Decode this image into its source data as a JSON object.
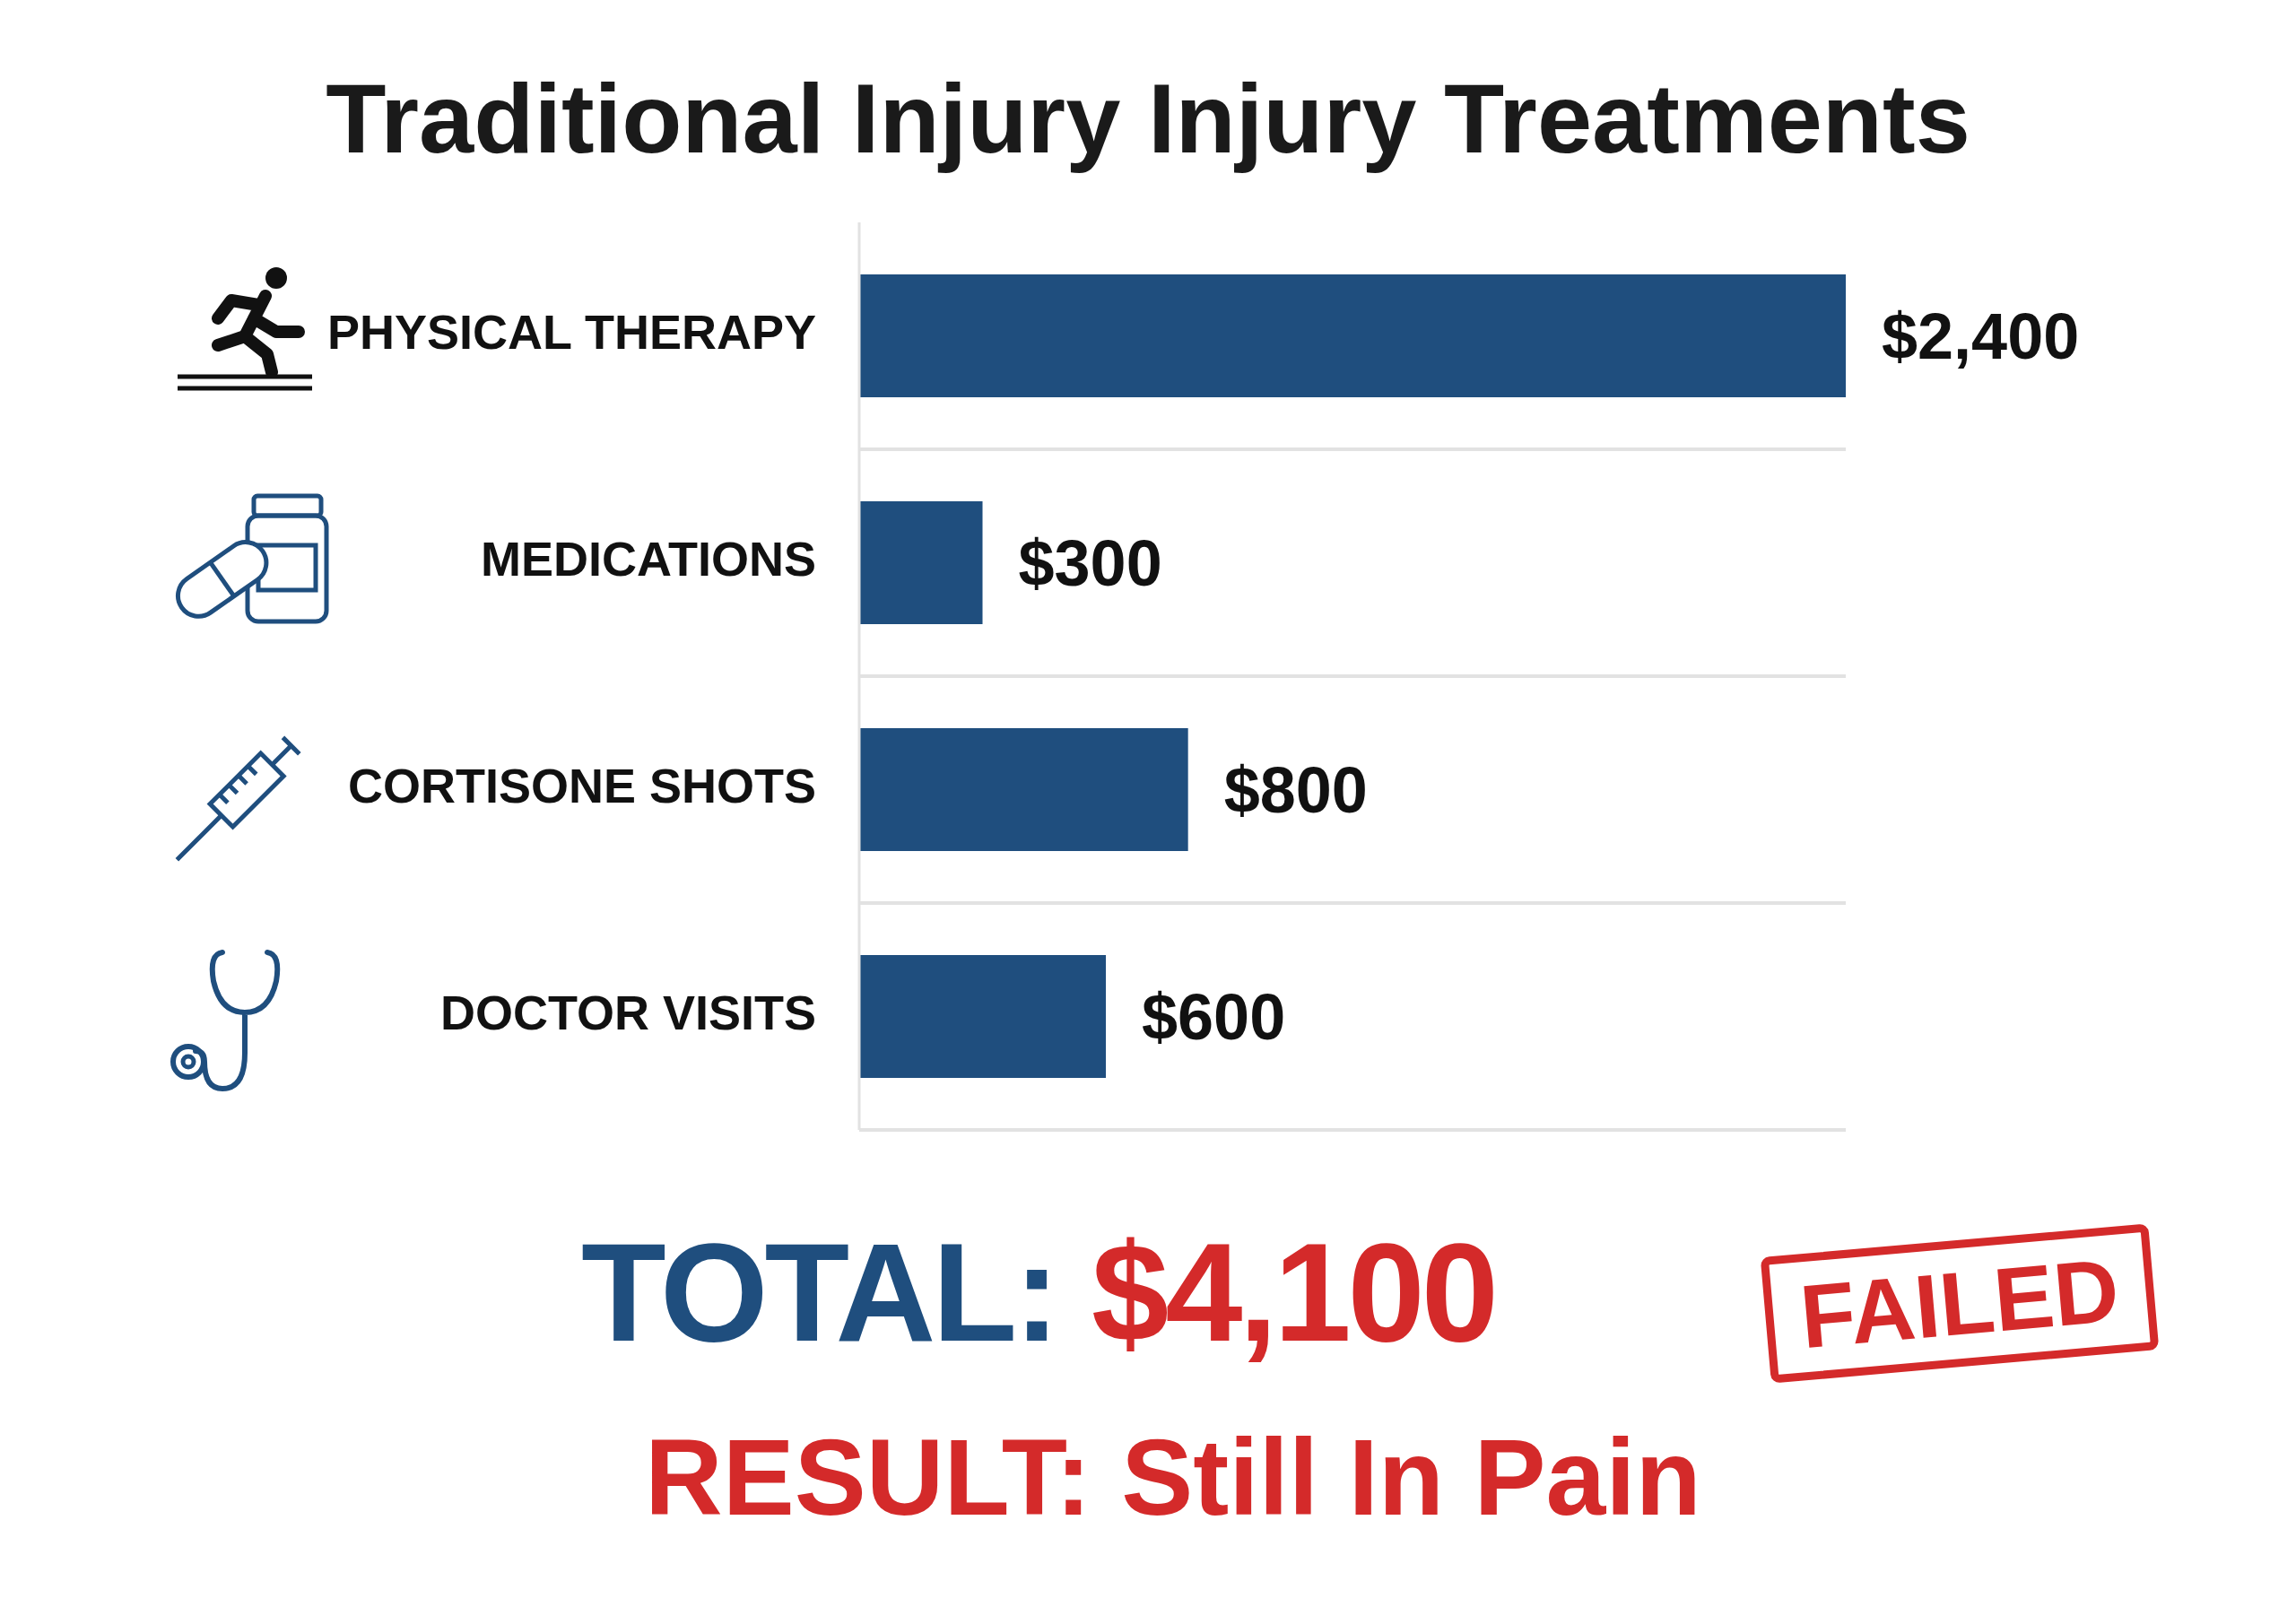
{
  "chart_data": {
    "type": "bar",
    "orientation": "horizontal",
    "title": "Traditional Injury Injury Treatments",
    "categories": [
      "PHYSICAL THERAPY",
      "MEDICATIONS",
      "CORTISONE SHOTS",
      "DOCTOR VISITS"
    ],
    "values": [
      2400,
      300,
      800,
      600
    ],
    "color": "#1f4e7e",
    "value_labels": [
      "$2,400",
      "$300",
      "$800",
      "$600"
    ],
    "tick_labels": "y",
    "grid": "y",
    "annotations": [
      "TOTAL: $4,100",
      "FAILED",
      "RESULT: Still In Pain"
    ]
  }
}
